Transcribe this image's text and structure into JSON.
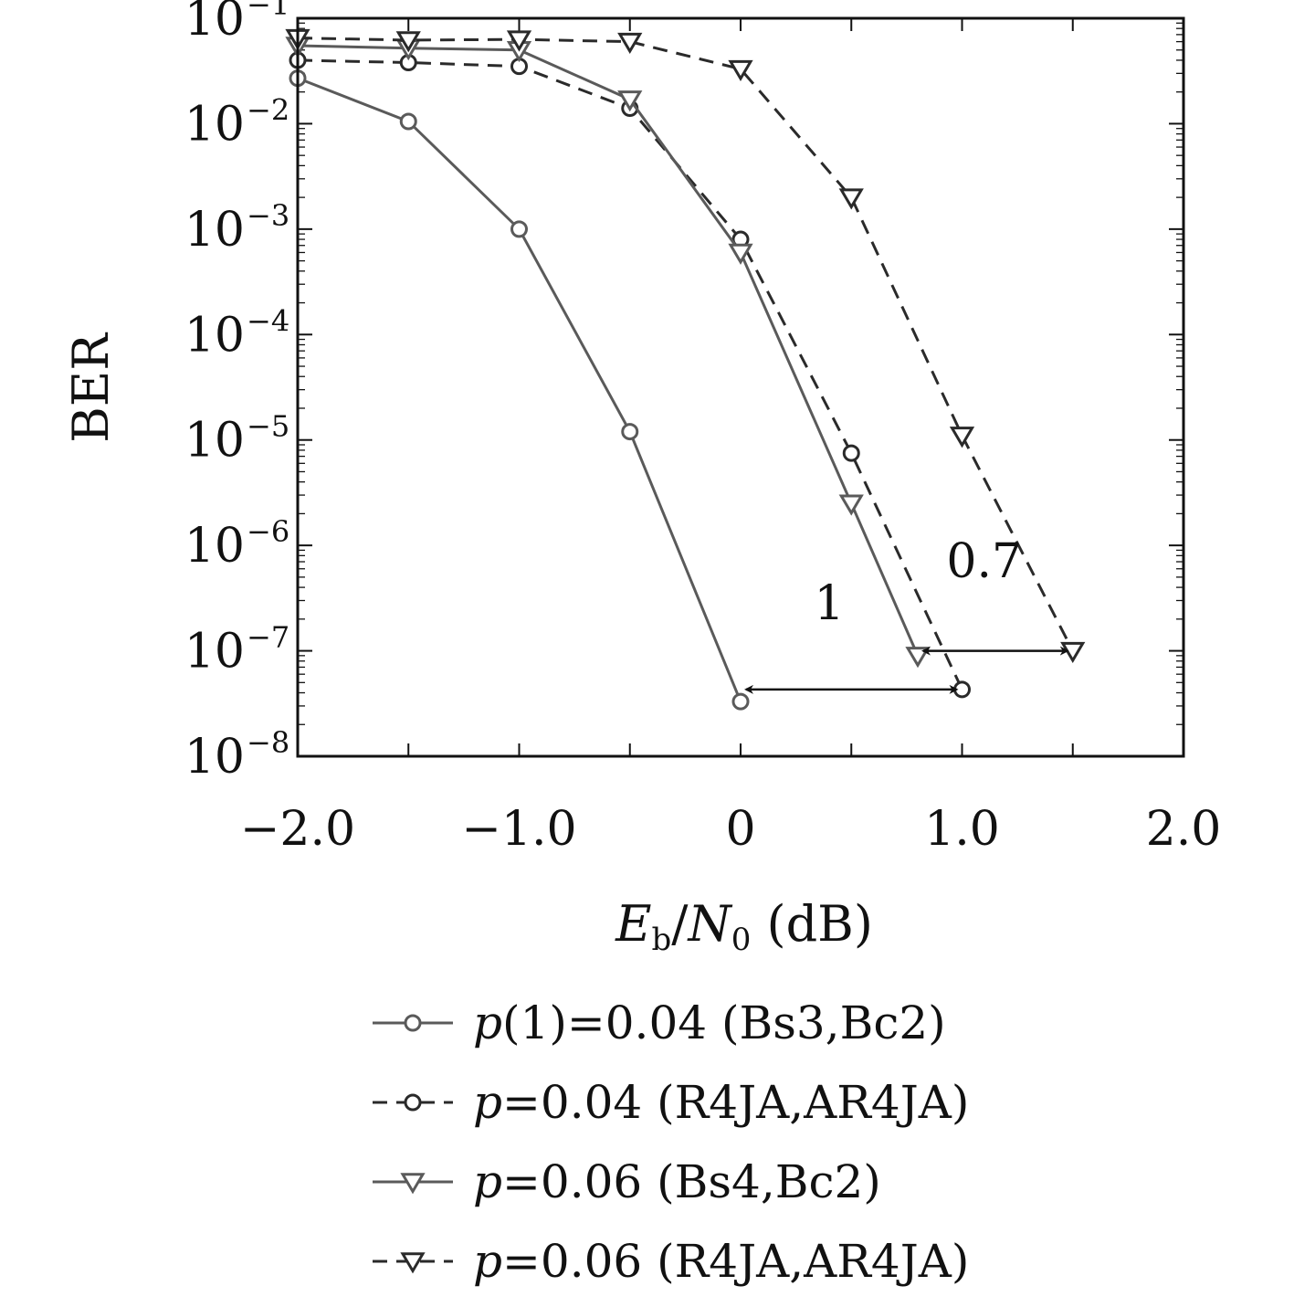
{
  "chart_data": {
    "type": "line",
    "xlabel": "E_b/N_0 (dB)",
    "ylabel": "BER",
    "yscale": "log",
    "xlim": [
      -2.0,
      2.0
    ],
    "ylim": [
      1e-08,
      0.1
    ],
    "x_ticks": [
      {
        "value": -2.0,
        "label": "−2.0"
      },
      {
        "value": -1.0,
        "label": "−1.0"
      },
      {
        "value": 0,
        "label": "0"
      },
      {
        "value": 1.0,
        "label": "1.0"
      },
      {
        "value": 2.0,
        "label": "2.0"
      }
    ],
    "y_ticks": [
      {
        "value": 0.1,
        "mantissa": "10",
        "exp": "−1"
      },
      {
        "value": 0.01,
        "mantissa": "10",
        "exp": "−2"
      },
      {
        "value": 0.001,
        "mantissa": "10",
        "exp": "−3"
      },
      {
        "value": 0.0001,
        "mantissa": "10",
        "exp": "−4"
      },
      {
        "value": 1e-05,
        "mantissa": "10",
        "exp": "−5"
      },
      {
        "value": 1e-06,
        "mantissa": "10",
        "exp": "−6"
      },
      {
        "value": 1e-07,
        "mantissa": "10",
        "exp": "−7"
      },
      {
        "value": 1e-08,
        "mantissa": "10",
        "exp": "−8"
      }
    ],
    "legend_position": "below",
    "series": [
      {
        "name": "p(1)=0.04 (Bs3,Bc2)",
        "style": "solid",
        "marker": "circle",
        "color": "#5a5a5a",
        "x": [
          -2.0,
          -1.5,
          -1.0,
          -0.5,
          0.0
        ],
        "y": [
          0.027,
          0.0105,
          0.001,
          1.2e-05,
          3.3e-08
        ]
      },
      {
        "name": "p=0.04 (R4JA,AR4JA)",
        "style": "dashed",
        "marker": "circle",
        "color": "#2a2a2a",
        "x": [
          -2.0,
          -1.5,
          -1.0,
          -0.5,
          0.0,
          0.5,
          1.0
        ],
        "y": [
          0.04,
          0.038,
          0.035,
          0.014,
          0.0008,
          7.5e-06,
          4.3e-08
        ]
      },
      {
        "name": "p=0.06 (Bs4,Bc2)",
        "style": "solid",
        "marker": "triangle-down",
        "color": "#5a5a5a",
        "x": [
          -2.0,
          -1.5,
          -1.0,
          -0.5,
          0.0,
          0.5,
          0.8
        ],
        "y": [
          0.055,
          0.052,
          0.05,
          0.017,
          0.0006,
          2.5e-06,
          9e-08
        ]
      },
      {
        "name": "p=0.06 (R4JA,AR4JA)",
        "style": "dashed",
        "marker": "triangle-down",
        "color": "#2a2a2a",
        "x": [
          -2.0,
          -1.5,
          -1.0,
          -0.5,
          0.0,
          0.5,
          1.0,
          1.5
        ],
        "y": [
          0.065,
          0.062,
          0.063,
          0.06,
          0.033,
          0.002,
          1.1e-05,
          1e-07
        ]
      }
    ],
    "annotations": [
      {
        "text": "1",
        "from_x": 0.0,
        "to_x": 1.0,
        "y": 4.3e-08,
        "label_x": 0.4,
        "label_y": 2e-07
      },
      {
        "text": "0.7",
        "from_x": 0.8,
        "to_x": 1.5,
        "y": 1e-07,
        "label_x": 1.1,
        "label_y": 5e-07
      }
    ]
  }
}
